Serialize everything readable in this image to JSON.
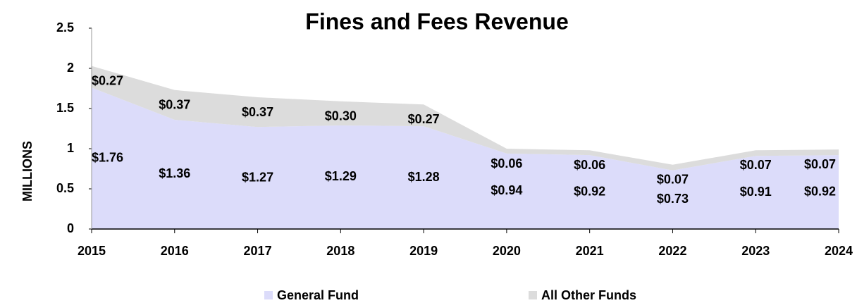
{
  "chart_data": {
    "type": "area",
    "stacked": true,
    "title": "Fines and Fees Revenue",
    "y_label": "MILLIONS",
    "categories": [
      "2015",
      "2016",
      "2017",
      "2018",
      "2019",
      "2020",
      "2021",
      "2022",
      "2023",
      "2024"
    ],
    "series": [
      {
        "name": "General Fund",
        "color": "#dcdcfa",
        "values": [
          1.76,
          1.36,
          1.27,
          1.29,
          1.28,
          0.94,
          0.92,
          0.73,
          0.91,
          0.92
        ],
        "value_labels": [
          "$1.76",
          "$1.36",
          "$1.27",
          "$1.29",
          "$1.28",
          "$0.94",
          "$0.92",
          "$0.73",
          "$0.91",
          "$0.92"
        ]
      },
      {
        "name": "All Other Funds",
        "color": "#dcdcdc",
        "values": [
          0.27,
          0.37,
          0.37,
          0.3,
          0.27,
          0.06,
          0.06,
          0.07,
          0.07,
          0.07
        ],
        "value_labels": [
          "$0.27",
          "$0.37",
          "$0.37",
          "$0.30",
          "$0.27",
          "$0.06",
          "$0.06",
          "$0.07",
          "$0.07",
          "$0.07"
        ]
      }
    ],
    "ylim": [
      0,
      2.5
    ],
    "yticks": [
      0,
      0.5,
      1,
      1.5,
      2,
      2.5
    ],
    "legend": "bottom"
  }
}
